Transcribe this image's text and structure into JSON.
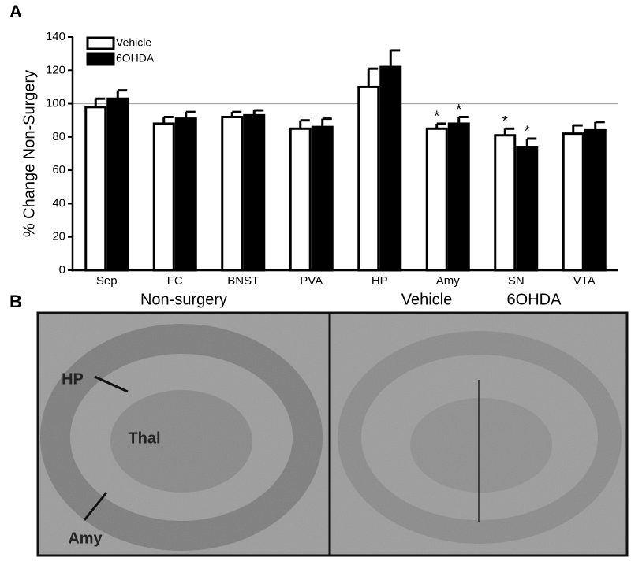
{
  "panel_a": {
    "label": "A"
  },
  "chart_data": {
    "type": "bar",
    "ylabel": "% Change Non-Surgery",
    "categories": [
      "Sep",
      "FC",
      "BNST",
      "PVA",
      "HP",
      "Amy",
      "SN",
      "VTA"
    ],
    "series": [
      {
        "name": "Vehicle",
        "color": "#ffffff",
        "values": [
          98,
          88,
          92,
          85,
          110,
          85,
          81,
          82
        ],
        "errors": [
          5,
          4,
          3,
          5,
          11,
          3,
          4,
          5
        ],
        "significance": [
          null,
          null,
          null,
          null,
          null,
          "*",
          "*",
          null
        ]
      },
      {
        "name": "6OHDA",
        "color": "#000000",
        "values": [
          103,
          91,
          93,
          86,
          122,
          88,
          74,
          84
        ],
        "errors": [
          5,
          4,
          3,
          5,
          10,
          4,
          5,
          5
        ],
        "significance": [
          null,
          null,
          null,
          null,
          null,
          "*",
          "*",
          null
        ]
      }
    ],
    "ylim": [
      0,
      140
    ],
    "yticks": [
      0,
      20,
      40,
      60,
      80,
      100,
      120,
      140
    ],
    "reference_line": 100
  },
  "panel_b": {
    "label": "B",
    "titles": [
      "Non-surgery",
      "Vehicle",
      "6OHDA"
    ],
    "annotations": [
      "HP",
      "Thal",
      "Amy"
    ]
  }
}
